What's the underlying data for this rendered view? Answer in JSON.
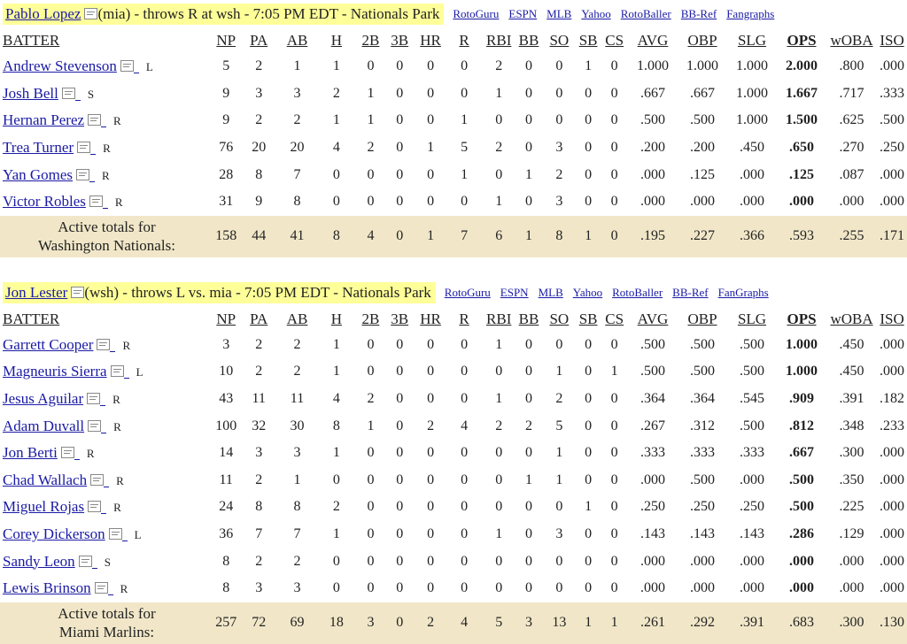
{
  "columns": [
    "BATTER",
    "NP",
    "PA",
    "AB",
    "H",
    "2B",
    "3B",
    "HR",
    "R",
    "RBI",
    "BB",
    "SO",
    "SB",
    "CS",
    "AVG",
    "OBP",
    "SLG",
    "OPS",
    "wOBA",
    "ISO"
  ],
  "games": [
    {
      "pitcher": "Pablo Lopez",
      "matchup": "(mia) - throws R at wsh - 7:05 PM EDT - Nationals Park",
      "links": [
        "RotoGuru",
        "ESPN",
        "MLB",
        "Yahoo",
        "RotoBaller",
        "BB-Ref",
        "Fangraphs"
      ],
      "batters": [
        {
          "name": "Andrew Stevenson",
          "hand": "L",
          "stats": [
            "5",
            "2",
            "1",
            "1",
            "0",
            "0",
            "0",
            "0",
            "2",
            "0",
            "0",
            "1",
            "0",
            "1.000",
            "1.000",
            "1.000",
            "2.000",
            ".800",
            ".000"
          ]
        },
        {
          "name": "Josh Bell",
          "hand": "S",
          "stats": [
            "9",
            "3",
            "3",
            "2",
            "1",
            "0",
            "0",
            "0",
            "1",
            "0",
            "0",
            "0",
            "0",
            ".667",
            ".667",
            "1.000",
            "1.667",
            ".717",
            ".333"
          ]
        },
        {
          "name": "Hernan Perez",
          "hand": "R",
          "stats": [
            "9",
            "2",
            "2",
            "1",
            "1",
            "0",
            "0",
            "1",
            "0",
            "0",
            "0",
            "0",
            "0",
            ".500",
            ".500",
            "1.000",
            "1.500",
            ".625",
            ".500"
          ]
        },
        {
          "name": "Trea Turner",
          "hand": "R",
          "stats": [
            "76",
            "20",
            "20",
            "4",
            "2",
            "0",
            "1",
            "5",
            "2",
            "0",
            "3",
            "0",
            "0",
            ".200",
            ".200",
            ".450",
            ".650",
            ".270",
            ".250"
          ]
        },
        {
          "name": "Yan Gomes",
          "hand": "R",
          "stats": [
            "28",
            "8",
            "7",
            "0",
            "0",
            "0",
            "0",
            "1",
            "0",
            "1",
            "2",
            "0",
            "0",
            ".000",
            ".125",
            ".000",
            ".125",
            ".087",
            ".000"
          ]
        },
        {
          "name": "Victor Robles",
          "hand": "R",
          "stats": [
            "31",
            "9",
            "8",
            "0",
            "0",
            "0",
            "0",
            "0",
            "1",
            "0",
            "3",
            "0",
            "0",
            ".000",
            ".000",
            ".000",
            ".000",
            ".000",
            ".000"
          ]
        }
      ],
      "total_label_1": "Active totals for",
      "total_label_2": "Washington Nationals:",
      "totals": [
        "158",
        "44",
        "41",
        "8",
        "4",
        "0",
        "1",
        "7",
        "6",
        "1",
        "8",
        "1",
        "0",
        ".195",
        ".227",
        ".366",
        ".593",
        ".255",
        ".171"
      ]
    },
    {
      "pitcher": "Jon Lester",
      "matchup": "(wsh) - throws L vs. mia - 7:05 PM EDT - Nationals Park",
      "links": [
        "RotoGuru",
        "ESPN",
        "MLB",
        "Yahoo",
        "RotoBaller",
        "BB-Ref",
        "FanGraphs"
      ],
      "batters": [
        {
          "name": "Garrett Cooper",
          "hand": "R",
          "stats": [
            "3",
            "2",
            "2",
            "1",
            "0",
            "0",
            "0",
            "0",
            "1",
            "0",
            "0",
            "0",
            "0",
            ".500",
            ".500",
            ".500",
            "1.000",
            ".450",
            ".000"
          ]
        },
        {
          "name": "Magneuris Sierra",
          "hand": "L",
          "stats": [
            "10",
            "2",
            "2",
            "1",
            "0",
            "0",
            "0",
            "0",
            "0",
            "0",
            "1",
            "0",
            "1",
            ".500",
            ".500",
            ".500",
            "1.000",
            ".450",
            ".000"
          ]
        },
        {
          "name": "Jesus Aguilar",
          "hand": "R",
          "stats": [
            "43",
            "11",
            "11",
            "4",
            "2",
            "0",
            "0",
            "0",
            "1",
            "0",
            "2",
            "0",
            "0",
            ".364",
            ".364",
            ".545",
            ".909",
            ".391",
            ".182"
          ]
        },
        {
          "name": "Adam Duvall",
          "hand": "R",
          "stats": [
            "100",
            "32",
            "30",
            "8",
            "1",
            "0",
            "2",
            "4",
            "2",
            "2",
            "5",
            "0",
            "0",
            ".267",
            ".312",
            ".500",
            ".812",
            ".348",
            ".233"
          ]
        },
        {
          "name": "Jon Berti",
          "hand": "R",
          "stats": [
            "14",
            "3",
            "3",
            "1",
            "0",
            "0",
            "0",
            "0",
            "0",
            "0",
            "1",
            "0",
            "0",
            ".333",
            ".333",
            ".333",
            ".667",
            ".300",
            ".000"
          ]
        },
        {
          "name": "Chad Wallach",
          "hand": "R",
          "stats": [
            "11",
            "2",
            "1",
            "0",
            "0",
            "0",
            "0",
            "0",
            "0",
            "1",
            "1",
            "0",
            "0",
            ".000",
            ".500",
            ".000",
            ".500",
            ".350",
            ".000"
          ]
        },
        {
          "name": "Miguel Rojas",
          "hand": "R",
          "stats": [
            "24",
            "8",
            "8",
            "2",
            "0",
            "0",
            "0",
            "0",
            "0",
            "0",
            "0",
            "1",
            "0",
            ".250",
            ".250",
            ".250",
            ".500",
            ".225",
            ".000"
          ]
        },
        {
          "name": "Corey Dickerson",
          "hand": "L",
          "stats": [
            "36",
            "7",
            "7",
            "1",
            "0",
            "0",
            "0",
            "0",
            "1",
            "0",
            "3",
            "0",
            "0",
            ".143",
            ".143",
            ".143",
            ".286",
            ".129",
            ".000"
          ]
        },
        {
          "name": "Sandy Leon",
          "hand": "S",
          "stats": [
            "8",
            "2",
            "2",
            "0",
            "0",
            "0",
            "0",
            "0",
            "0",
            "0",
            "0",
            "0",
            "0",
            ".000",
            ".000",
            ".000",
            ".000",
            ".000",
            ".000"
          ]
        },
        {
          "name": "Lewis Brinson",
          "hand": "R",
          "stats": [
            "8",
            "3",
            "3",
            "0",
            "0",
            "0",
            "0",
            "0",
            "0",
            "0",
            "0",
            "0",
            "0",
            ".000",
            ".000",
            ".000",
            ".000",
            ".000",
            ".000"
          ]
        }
      ],
      "total_label_1": "Active totals for",
      "total_label_2": "Miami Marlins:",
      "totals": [
        "257",
        "72",
        "69",
        "18",
        "3",
        "0",
        "2",
        "4",
        "5",
        "3",
        "13",
        "1",
        "1",
        ".261",
        ".292",
        ".391",
        ".683",
        ".300",
        ".130"
      ]
    }
  ]
}
